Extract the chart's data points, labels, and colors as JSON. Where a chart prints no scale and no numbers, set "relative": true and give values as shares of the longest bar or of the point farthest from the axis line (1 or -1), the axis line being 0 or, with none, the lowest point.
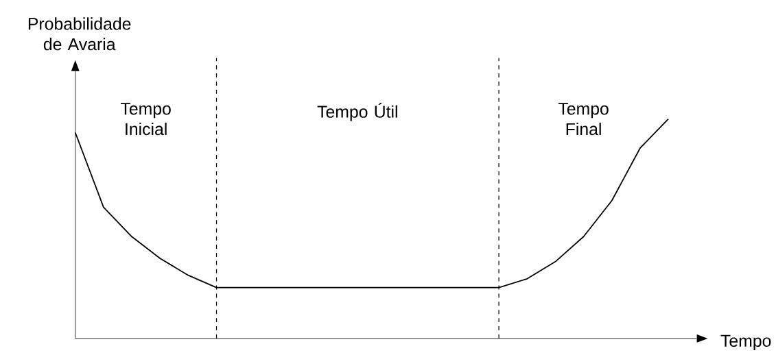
{
  "chart_data": {
    "type": "line",
    "relative": true,
    "color": "#000000",
    "ylabel": "Probabilidade de Avaria",
    "xlabel": "Tempo",
    "categories": [
      null,
      null,
      null,
      null,
      null,
      null,
      null,
      null,
      null,
      null,
      null,
      null,
      null,
      null,
      null,
      null,
      null,
      null,
      null,
      null,
      null,
      null
    ],
    "values": [
      0.938,
      0.598,
      0.464,
      0.365,
      0.288,
      0.232,
      0.232,
      0.232,
      0.232,
      0.232,
      0.232,
      0.232,
      0.232,
      0.232,
      0.232,
      0.232,
      0.272,
      0.35,
      0.464,
      0.628,
      0.867,
      1.0
    ],
    "annotations": [
      "Tempo Inicial",
      "Tempo Útil",
      "Tempo Final"
    ]
  }
}
